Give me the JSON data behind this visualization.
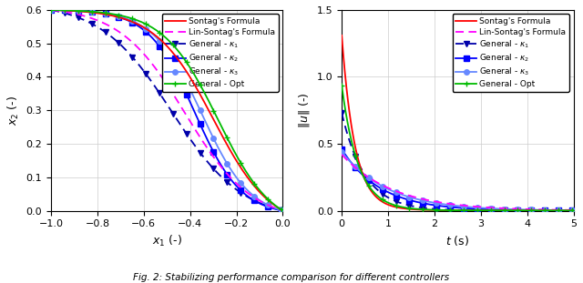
{
  "fig_width": 6.4,
  "fig_height": 3.11,
  "dpi": 100,
  "caption": "Fig. 2: Stabilizing performance comparison for different controllers",
  "left_plot": {
    "xlabel": "$x_1$ (-)",
    "ylabel": "$x_2$ (-)",
    "xlim": [
      -1.0,
      0.0
    ],
    "ylim": [
      0.0,
      0.6
    ],
    "xticks": [
      -1.0,
      -0.8,
      -0.6,
      -0.4,
      -0.2,
      0.0
    ],
    "yticks": [
      0.0,
      0.1,
      0.2,
      0.3,
      0.4,
      0.5,
      0.6
    ]
  },
  "right_plot": {
    "xlabel": "$t$ (s)",
    "ylabel": "$\\|u\\|$ (-)",
    "xlim": [
      0.0,
      5.0
    ],
    "ylim": [
      0.0,
      1.5
    ],
    "xticks": [
      0,
      1,
      2,
      3,
      4,
      5
    ],
    "yticks": [
      0.0,
      0.5,
      1.0,
      1.5
    ]
  },
  "colors": {
    "sontag": "#FF0000",
    "lin_sontag": "#FF00FF",
    "kappa1": "#0000AA",
    "kappa2": "#0000FF",
    "kappa3": "#6688FF",
    "opt": "#00BB00"
  },
  "background_color": "#FFFFFF",
  "grid_color": "#CCCCCC"
}
